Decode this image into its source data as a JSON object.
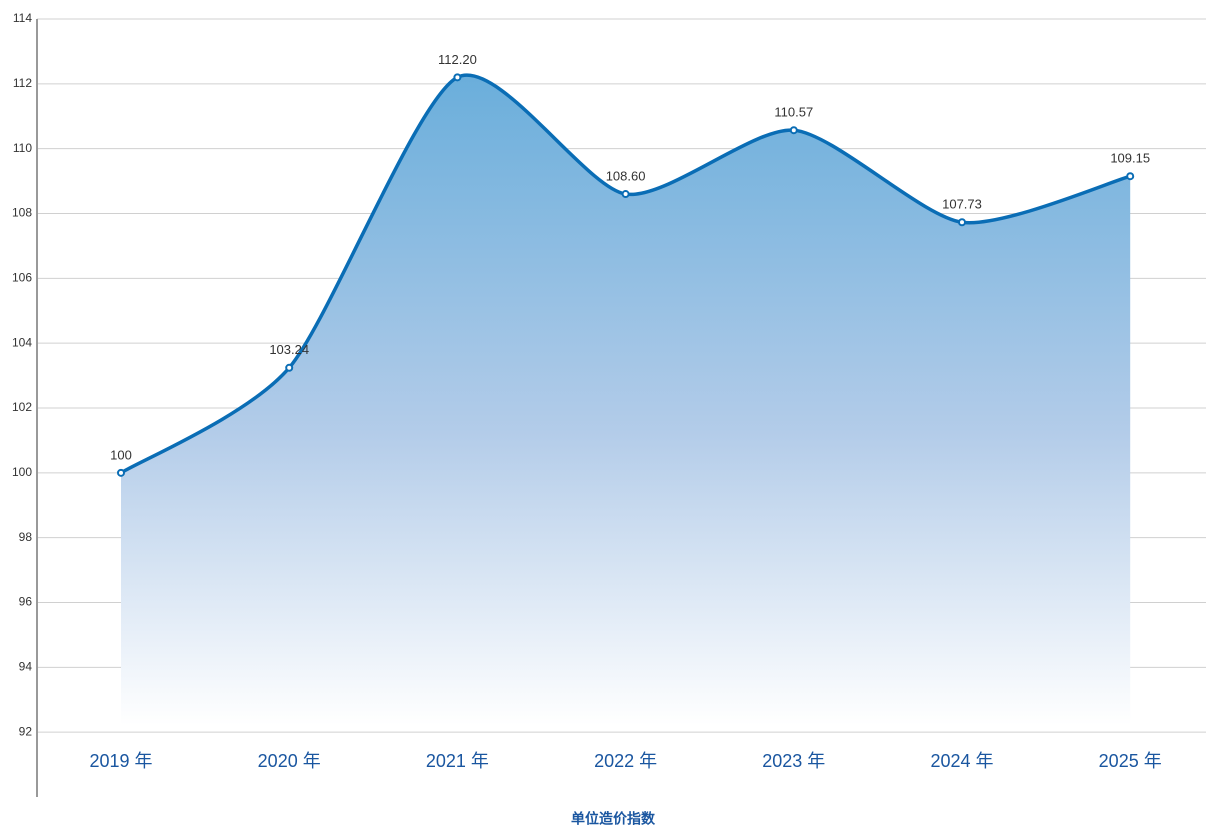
{
  "chart_data": {
    "type": "area",
    "xlabel": "单位造价指数",
    "categories": [
      "2019 年",
      "2020 年",
      "2021 年",
      "2022 年",
      "2023 年",
      "2024 年",
      "2025 年"
    ],
    "values": [
      100,
      103.24,
      112.2,
      108.6,
      110.57,
      107.73,
      109.15
    ],
    "value_labels": [
      "100",
      "103.24",
      "112.20",
      "108.60",
      "110.57",
      "107.73",
      "109.15"
    ],
    "color": "#0a6db5",
    "ylim": [
      90,
      114
    ],
    "yticks": [
      92,
      94,
      96,
      98,
      100,
      102,
      104,
      106,
      108,
      110,
      112,
      114
    ],
    "grid": true
  }
}
